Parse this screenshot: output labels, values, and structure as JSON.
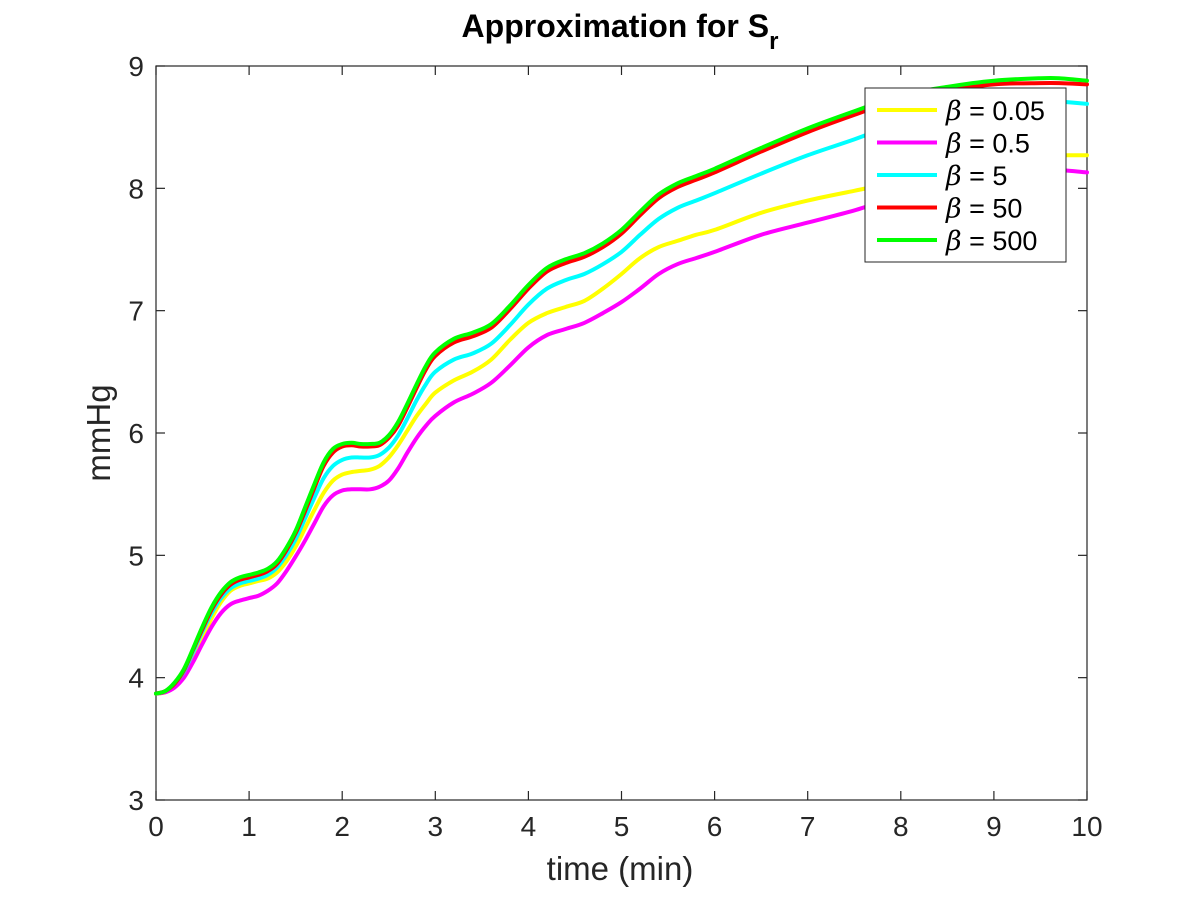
{
  "chart_data": {
    "type": "line",
    "title": "Approximation for S",
    "title_subscript": "r",
    "xlabel": "time (min)",
    "ylabel": "mmHg",
    "xlim": [
      0,
      10
    ],
    "ylim": [
      3,
      9
    ],
    "xticks": [
      "0",
      "1",
      "2",
      "3",
      "4",
      "5",
      "6",
      "7",
      "8",
      "9",
      "10"
    ],
    "yticks": [
      "3",
      "4",
      "5",
      "6",
      "7",
      "8",
      "9"
    ],
    "grid": false,
    "legend_position": "top-right",
    "legend_symbol": "β",
    "series": [
      {
        "name": "= 0.05",
        "color": "#ffff00",
        "x": [
          0,
          0.1,
          0.2,
          0.3,
          0.4,
          0.5,
          0.6,
          0.7,
          0.8,
          0.9,
          1.0,
          1.1,
          1.2,
          1.3,
          1.4,
          1.5,
          1.6,
          1.7,
          1.8,
          1.9,
          2.0,
          2.1,
          2.2,
          2.3,
          2.4,
          2.5,
          2.6,
          2.7,
          2.8,
          2.9,
          3.0,
          3.2,
          3.4,
          3.6,
          3.8,
          4.0,
          4.2,
          4.4,
          4.6,
          4.8,
          5.0,
          5.2,
          5.4,
          5.6,
          5.8,
          6.0,
          6.5,
          7.0,
          7.5,
          8.0,
          8.5,
          9.0,
          9.5,
          9.7,
          10.0
        ],
        "y": [
          3.87,
          3.88,
          3.93,
          4.02,
          4.17,
          4.33,
          4.49,
          4.62,
          4.71,
          4.75,
          4.77,
          4.79,
          4.81,
          4.86,
          4.95,
          5.07,
          5.22,
          5.37,
          5.51,
          5.61,
          5.66,
          5.68,
          5.69,
          5.7,
          5.73,
          5.8,
          5.9,
          6.02,
          6.14,
          6.24,
          6.33,
          6.43,
          6.5,
          6.6,
          6.76,
          6.9,
          6.98,
          7.03,
          7.08,
          7.18,
          7.3,
          7.43,
          7.52,
          7.57,
          7.62,
          7.66,
          7.8,
          7.9,
          7.98,
          8.06,
          8.16,
          8.24,
          8.27,
          8.27,
          8.27
        ]
      },
      {
        "name": "= 0.5",
        "color": "#ff00ff",
        "x": [
          0,
          0.1,
          0.2,
          0.3,
          0.4,
          0.5,
          0.6,
          0.7,
          0.8,
          0.9,
          1.0,
          1.1,
          1.2,
          1.3,
          1.4,
          1.5,
          1.6,
          1.7,
          1.8,
          1.9,
          2.0,
          2.1,
          2.2,
          2.3,
          2.4,
          2.5,
          2.6,
          2.7,
          2.8,
          2.9,
          3.0,
          3.2,
          3.4,
          3.6,
          3.8,
          4.0,
          4.2,
          4.4,
          4.6,
          4.8,
          5.0,
          5.2,
          5.4,
          5.6,
          5.8,
          6.0,
          6.5,
          7.0,
          7.5,
          8.0,
          8.5,
          9.0,
          9.5,
          9.7,
          10.0
        ],
        "y": [
          3.87,
          3.88,
          3.92,
          4.0,
          4.13,
          4.28,
          4.42,
          4.53,
          4.6,
          4.63,
          4.65,
          4.67,
          4.71,
          4.77,
          4.87,
          4.99,
          5.12,
          5.26,
          5.4,
          5.49,
          5.53,
          5.54,
          5.54,
          5.54,
          5.56,
          5.61,
          5.71,
          5.84,
          5.96,
          6.06,
          6.14,
          6.25,
          6.32,
          6.41,
          6.55,
          6.7,
          6.8,
          6.85,
          6.9,
          6.98,
          7.07,
          7.18,
          7.3,
          7.38,
          7.43,
          7.48,
          7.62,
          7.72,
          7.82,
          7.94,
          8.04,
          8.12,
          8.15,
          8.15,
          8.13
        ]
      },
      {
        "name": "= 5",
        "color": "#00ffff",
        "x": [
          0,
          0.1,
          0.2,
          0.3,
          0.4,
          0.5,
          0.6,
          0.7,
          0.8,
          0.9,
          1.0,
          1.1,
          1.2,
          1.3,
          1.4,
          1.5,
          1.6,
          1.7,
          1.8,
          1.9,
          2.0,
          2.1,
          2.2,
          2.3,
          2.4,
          2.5,
          2.6,
          2.7,
          2.8,
          2.9,
          3.0,
          3.2,
          3.4,
          3.6,
          3.8,
          4.0,
          4.2,
          4.4,
          4.6,
          4.8,
          5.0,
          5.2,
          5.4,
          5.6,
          5.8,
          6.0,
          6.5,
          7.0,
          7.5,
          8.0,
          8.5,
          9.0,
          9.5,
          9.7,
          10.0
        ],
        "y": [
          3.87,
          3.89,
          3.95,
          4.05,
          4.21,
          4.38,
          4.53,
          4.65,
          4.73,
          4.77,
          4.79,
          4.81,
          4.84,
          4.9,
          5.0,
          5.13,
          5.3,
          5.47,
          5.63,
          5.73,
          5.78,
          5.8,
          5.8,
          5.8,
          5.82,
          5.88,
          5.98,
          6.12,
          6.27,
          6.4,
          6.5,
          6.6,
          6.65,
          6.73,
          6.88,
          7.05,
          7.18,
          7.25,
          7.3,
          7.38,
          7.48,
          7.62,
          7.75,
          7.84,
          7.9,
          7.96,
          8.12,
          8.27,
          8.4,
          8.54,
          8.65,
          8.71,
          8.72,
          8.71,
          8.69
        ]
      },
      {
        "name": "= 50",
        "color": "#ff0000",
        "x": [
          0,
          0.1,
          0.2,
          0.3,
          0.4,
          0.5,
          0.6,
          0.7,
          0.8,
          0.9,
          1.0,
          1.1,
          1.2,
          1.3,
          1.4,
          1.5,
          1.6,
          1.7,
          1.8,
          1.9,
          2.0,
          2.1,
          2.2,
          2.3,
          2.4,
          2.5,
          2.6,
          2.7,
          2.8,
          2.9,
          3.0,
          3.2,
          3.4,
          3.6,
          3.8,
          4.0,
          4.2,
          4.4,
          4.6,
          4.8,
          5.0,
          5.2,
          5.4,
          5.6,
          5.8,
          6.0,
          6.5,
          7.0,
          7.5,
          8.0,
          8.5,
          9.0,
          9.5,
          9.7,
          10.0
        ],
        "y": [
          3.87,
          3.89,
          3.95,
          4.06,
          4.23,
          4.4,
          4.56,
          4.68,
          4.76,
          4.8,
          4.82,
          4.84,
          4.87,
          4.93,
          5.04,
          5.18,
          5.36,
          5.55,
          5.73,
          5.84,
          5.89,
          5.9,
          5.89,
          5.89,
          5.9,
          5.96,
          6.06,
          6.21,
          6.37,
          6.52,
          6.63,
          6.74,
          6.79,
          6.86,
          7.01,
          7.18,
          7.32,
          7.39,
          7.44,
          7.52,
          7.63,
          7.78,
          7.92,
          8.01,
          8.07,
          8.13,
          8.3,
          8.46,
          8.6,
          8.73,
          8.8,
          8.85,
          8.86,
          8.86,
          8.85
        ]
      },
      {
        "name": "= 500",
        "color": "#00ff00",
        "x": [
          0,
          0.1,
          0.2,
          0.3,
          0.4,
          0.5,
          0.6,
          0.7,
          0.8,
          0.9,
          1.0,
          1.1,
          1.2,
          1.3,
          1.4,
          1.5,
          1.6,
          1.7,
          1.8,
          1.9,
          2.0,
          2.1,
          2.2,
          2.3,
          2.4,
          2.5,
          2.6,
          2.7,
          2.8,
          2.9,
          3.0,
          3.2,
          3.4,
          3.6,
          3.8,
          4.0,
          4.2,
          4.4,
          4.6,
          4.8,
          5.0,
          5.2,
          5.4,
          5.6,
          5.8,
          6.0,
          6.5,
          7.0,
          7.5,
          8.0,
          8.5,
          9.0,
          9.5,
          9.7,
          10.0
        ],
        "y": [
          3.87,
          3.89,
          3.96,
          4.07,
          4.24,
          4.42,
          4.58,
          4.7,
          4.78,
          4.82,
          4.84,
          4.86,
          4.89,
          4.95,
          5.06,
          5.2,
          5.39,
          5.58,
          5.76,
          5.87,
          5.91,
          5.92,
          5.91,
          5.91,
          5.92,
          5.98,
          6.09,
          6.24,
          6.4,
          6.55,
          6.66,
          6.77,
          6.82,
          6.89,
          7.04,
          7.21,
          7.35,
          7.42,
          7.47,
          7.55,
          7.66,
          7.81,
          7.95,
          8.04,
          8.1,
          8.16,
          8.33,
          8.49,
          8.63,
          8.76,
          8.83,
          8.88,
          8.9,
          8.9,
          8.88
        ]
      }
    ]
  }
}
